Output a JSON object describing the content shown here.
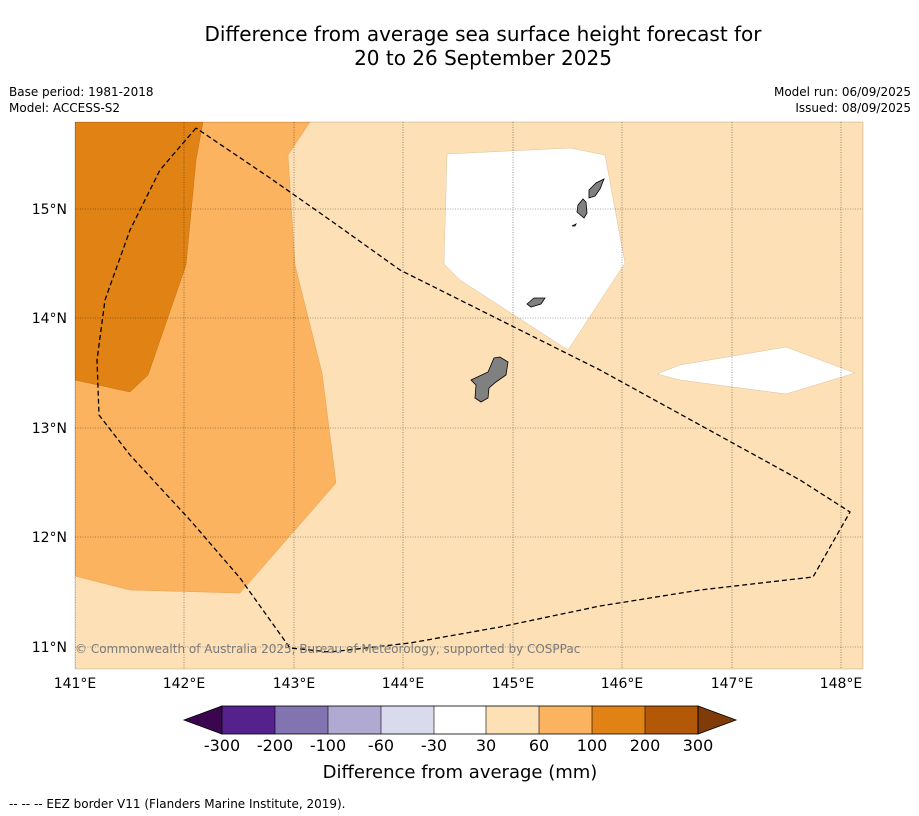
{
  "title": {
    "line1": "Difference from average sea surface height forecast for",
    "line2": "20 to 26 September 2025"
  },
  "meta": {
    "base_period": "Base period: 1981-2018",
    "model": "Model: ACCESS-S2",
    "model_run": "Model run: 06/09/2025",
    "issued": "Issued: 08/09/2025"
  },
  "map": {
    "lon_labels": [
      "141°E",
      "142°E",
      "143°E",
      "144°E",
      "145°E",
      "146°E",
      "147°E",
      "148°E"
    ],
    "lat_labels": [
      "15°N",
      "14°N",
      "13°N",
      "12°N",
      "11°N"
    ],
    "copyright": "© Commonwealth of Australia 2025, Bureau of Meteorology, supported by COSPPac"
  },
  "colorbar": {
    "tick_labels": [
      "-300",
      "-200",
      "-100",
      "-60",
      "-30",
      "30",
      "60",
      "100",
      "200",
      "300"
    ],
    "colors": {
      "under": "#3b0550",
      "c1": "#54218d",
      "c2": "#8273b1",
      "c3": "#b0a9d2",
      "c4": "#d9daec",
      "c5": "#ffffff",
      "c6": "#fde0b5",
      "c7": "#fbb35f",
      "c8": "#e08214",
      "c9": "#b35806",
      "over": "#7f3b08"
    },
    "label": "Difference from average (mm)"
  },
  "footer": {
    "legend": "-- -- -- EEZ border V11 (Flanders Marine Institute, 2019)."
  }
}
